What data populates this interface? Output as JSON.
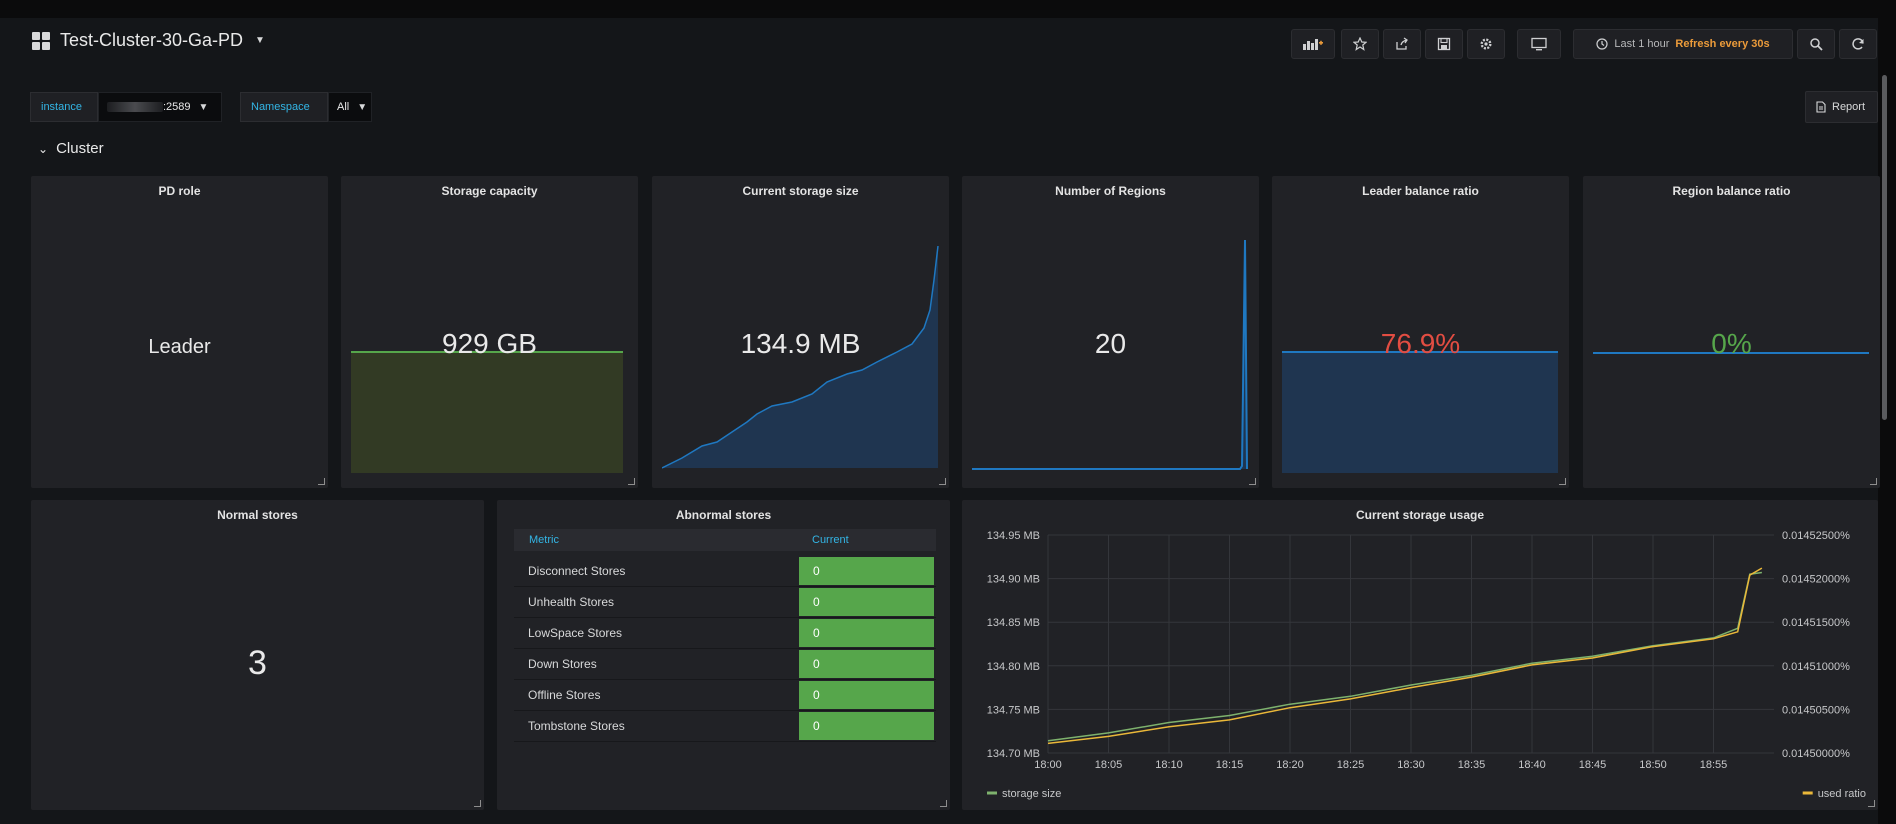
{
  "header": {
    "dashboard_title": "Test-Cluster-30-Ga-PD",
    "time_range": "Last 1 hour",
    "refresh": "Refresh every 30s"
  },
  "icons": [
    "grid-icon",
    "add-panel-icon",
    "star-icon",
    "share-icon",
    "save-icon",
    "gear-icon",
    "tv-icon",
    "clock-icon",
    "search-icon",
    "refresh-icon",
    "document-icon",
    "chevron-down-icon"
  ],
  "variables": {
    "instance_label": "instance",
    "instance_value": ":2589",
    "namespace_label": "Namespace",
    "namespace_value": "All"
  },
  "report_label": "Report",
  "row": {
    "title": "Cluster"
  },
  "panels": {
    "pd_role": {
      "title": "PD role",
      "value": "Leader"
    },
    "storage_capacity": {
      "title": "Storage capacity",
      "value": "929 GB"
    },
    "current_storage_size": {
      "title": "Current storage size",
      "value": "134.9 MB"
    },
    "number_of_regions": {
      "title": "Number of Regions",
      "value": "20"
    },
    "leader_balance_ratio": {
      "title": "Leader balance ratio",
      "value": "76.9%"
    },
    "region_balance_ratio": {
      "title": "Region balance ratio",
      "value": "0%"
    },
    "normal_stores": {
      "title": "Normal stores",
      "value": "3"
    },
    "abnormal_stores": {
      "title": "Abnormal stores",
      "columns": [
        "Metric",
        "Current"
      ],
      "rows": [
        {
          "metric": "Disconnect Stores",
          "current": "0"
        },
        {
          "metric": "Unhealth Stores",
          "current": "0"
        },
        {
          "metric": "LowSpace Stores",
          "current": "0"
        },
        {
          "metric": "Down Stores",
          "current": "0"
        },
        {
          "metric": "Offline Stores",
          "current": "0"
        },
        {
          "metric": "Tombstone Stores",
          "current": "0"
        }
      ]
    }
  },
  "colors": {
    "value_red": "#e24d42",
    "value_green": "#56a64b",
    "sparkline_blue": "#1f78c1",
    "threshold_green": "#56a64b",
    "storage_size_series": "#7eb26d",
    "used_ratio_series": "#eab839",
    "accent_orange": "#eb9b3a"
  },
  "chart_data": {
    "type": "line",
    "title": "Current storage usage",
    "xticks": [
      "18:00",
      "18:05",
      "18:10",
      "18:15",
      "18:20",
      "18:25",
      "18:30",
      "18:35",
      "18:40",
      "18:45",
      "18:50",
      "18:55"
    ],
    "yticks_left": [
      "134.95 MB",
      "134.90 MB",
      "134.85 MB",
      "134.80 MB",
      "134.75 MB",
      "134.70 MB"
    ],
    "yticks_right": [
      "0.01452500%",
      "0.01452000%",
      "0.01451500%",
      "0.01451000%",
      "0.01450500%",
      "0.01450000%"
    ],
    "ylim_left": [
      134.7,
      134.95
    ],
    "ylim_right": [
      0.0145,
      0.014525
    ],
    "grid": true,
    "legend_left": "storage size",
    "legend_right": "used ratio",
    "series": [
      {
        "name": "storage size",
        "axis": "left",
        "x": [
          "18:00",
          "18:05",
          "18:10",
          "18:15",
          "18:20",
          "18:25",
          "18:30",
          "18:35",
          "18:40",
          "18:45",
          "18:50",
          "18:55",
          "18:57",
          "18:58",
          "18:59"
        ],
        "values": [
          134.714,
          134.723,
          134.735,
          134.743,
          134.756,
          134.765,
          134.778,
          134.789,
          134.803,
          134.811,
          134.823,
          134.832,
          134.843,
          134.905,
          134.907
        ]
      },
      {
        "name": "used ratio",
        "axis": "right",
        "x": [
          "18:00",
          "18:05",
          "18:10",
          "18:15",
          "18:20",
          "18:25",
          "18:30",
          "18:35",
          "18:40",
          "18:45",
          "18:50",
          "18:55",
          "18:57",
          "18:58",
          "18:59"
        ],
        "values": [
          0.0145011,
          0.0145019,
          0.014503,
          0.0145038,
          0.0145052,
          0.0145062,
          0.0145075,
          0.0145087,
          0.0145101,
          0.0145109,
          0.0145122,
          0.0145131,
          0.0145139,
          0.0145204,
          0.0145212
        ]
      }
    ]
  }
}
